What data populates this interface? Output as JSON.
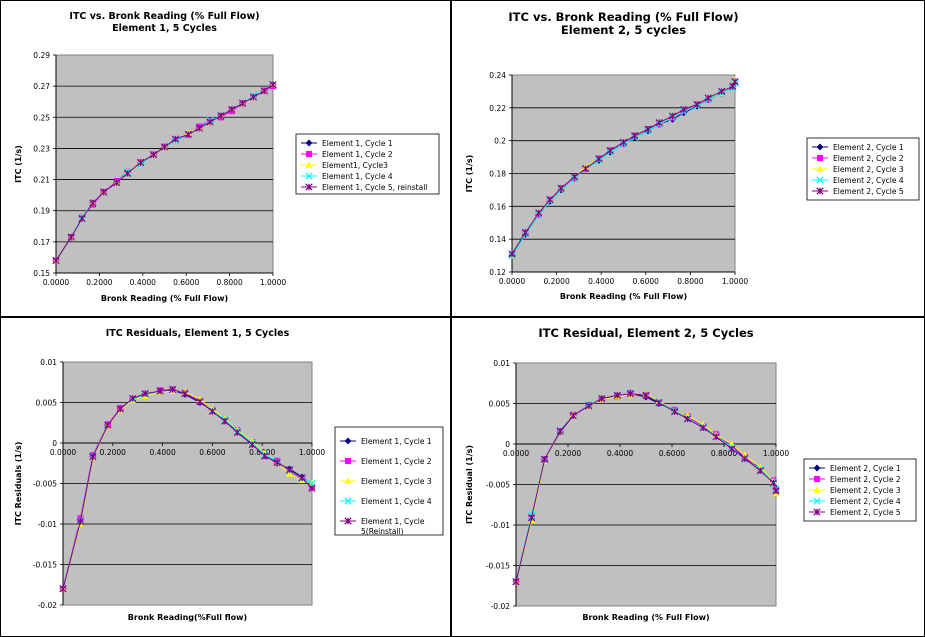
{
  "chart_data": [
    {
      "type": "line",
      "title": "ITC vs. Bronk Reading (% Full Flow)",
      "subtitle": "Element 1, 5 Cycles",
      "xlabel": "Bronk Reading (% Full Flow)",
      "ylabel": "ITC (1/s)",
      "xlim": [
        0,
        1
      ],
      "ylim": [
        0.15,
        0.29
      ],
      "xticks": [
        "0.0000",
        "0.2000",
        "0.4000",
        "0.6000",
        "0.8000",
        "1.0000"
      ],
      "yticks": [
        "0.15",
        "0.17",
        "0.19",
        "0.21",
        "0.23",
        "0.25",
        "0.27",
        "0.29"
      ],
      "grid": true,
      "legend_position": "right",
      "x": [
        0.0,
        0.07,
        0.12,
        0.17,
        0.22,
        0.28,
        0.33,
        0.39,
        0.45,
        0.5,
        0.55,
        0.61,
        0.66,
        0.71,
        0.76,
        0.81,
        0.86,
        0.91,
        0.96,
        1.0
      ],
      "series": [
        {
          "name": "Element 1, Cycle 1",
          "y": [
            0.158,
            0.173,
            0.186,
            0.195,
            0.202,
            0.208,
            0.215,
            0.221,
            0.226,
            0.231,
            0.235,
            0.239,
            0.243,
            0.247,
            0.251,
            0.255,
            0.259,
            0.263,
            0.267,
            0.271
          ]
        },
        {
          "name": "Element 1, Cycle 2",
          "y": [
            0.158,
            0.173,
            0.186,
            0.194,
            0.202,
            0.209,
            0.215,
            0.221,
            0.226,
            0.231,
            0.235,
            0.239,
            0.244,
            0.248,
            0.25,
            0.254,
            0.259,
            0.263,
            0.267,
            0.27
          ]
        },
        {
          "name": "Element1, Cycle3",
          "y": [
            0.158,
            0.173,
            0.186,
            0.195,
            0.202,
            0.208,
            0.215,
            0.221,
            0.226,
            0.231,
            0.235,
            0.24,
            0.243,
            0.247,
            0.251,
            0.255,
            0.259,
            0.263,
            0.267,
            0.271
          ]
        },
        {
          "name": "Element 1, Cycle 4",
          "y": [
            0.158,
            0.173,
            0.186,
            0.195,
            0.202,
            0.208,
            0.215,
            0.22,
            0.226,
            0.231,
            0.235,
            0.239,
            0.243,
            0.248,
            0.251,
            0.255,
            0.259,
            0.264,
            0.267,
            0.271
          ]
        },
        {
          "name": "Element 1, Cycle 5, reinstall",
          "y": [
            0.158,
            0.173,
            0.185,
            0.195,
            0.202,
            0.208,
            0.214,
            0.221,
            0.226,
            0.231,
            0.236,
            0.239,
            0.243,
            0.247,
            0.251,
            0.255,
            0.259,
            0.263,
            0.267,
            0.271
          ]
        }
      ]
    },
    {
      "type": "line",
      "title": "ITC vs. Bronk Reading (% Full Flow)",
      "subtitle": "Element 2, 5 cycles",
      "xlabel": "Bronk Reading (% Full Flow)",
      "ylabel": "ITC (1/s)",
      "xlim": [
        0,
        1
      ],
      "ylim": [
        0.12,
        0.24
      ],
      "xticks": [
        "0.0000",
        "0.2000",
        "0.4000",
        "0.6000",
        "0.8000",
        "1.0000"
      ],
      "yticks": [
        "0.12",
        "0.14",
        "0.16",
        "0.18",
        "0.2",
        "0.22",
        "0.24"
      ],
      "grid": true,
      "legend_position": "right",
      "x": [
        0.0,
        0.06,
        0.12,
        0.17,
        0.22,
        0.28,
        0.33,
        0.39,
        0.44,
        0.5,
        0.55,
        0.61,
        0.66,
        0.72,
        0.77,
        0.83,
        0.88,
        0.94,
        0.99,
        1.0
      ],
      "series": [
        {
          "name": "Element 2, Cycle 1",
          "y": [
            0.13,
            0.143,
            0.155,
            0.163,
            0.17,
            0.177,
            0.183,
            0.188,
            0.193,
            0.198,
            0.202,
            0.206,
            0.21,
            0.213,
            0.217,
            0.221,
            0.225,
            0.229,
            0.233,
            0.236
          ]
        },
        {
          "name": "Element 2, Cycle 2",
          "y": [
            0.13,
            0.144,
            0.155,
            0.164,
            0.171,
            0.177,
            0.183,
            0.189,
            0.194,
            0.198,
            0.203,
            0.207,
            0.21,
            0.214,
            0.218,
            0.222,
            0.225,
            0.229,
            0.233,
            0.236
          ]
        },
        {
          "name": "Element 2, Cycle 3",
          "y": [
            0.13,
            0.144,
            0.156,
            0.164,
            0.171,
            0.178,
            0.184,
            0.189,
            0.194,
            0.199,
            0.203,
            0.207,
            0.211,
            0.215,
            0.219,
            0.222,
            0.226,
            0.229,
            0.233,
            0.237
          ]
        },
        {
          "name": "Element 2, Cycle 4",
          "y": [
            0.13,
            0.143,
            0.155,
            0.163,
            0.17,
            0.177,
            0.183,
            0.188,
            0.193,
            0.198,
            0.202,
            0.206,
            0.21,
            0.214,
            0.218,
            0.221,
            0.225,
            0.229,
            0.232,
            0.235
          ]
        },
        {
          "name": "Element 2, Cycle 5",
          "y": [
            0.131,
            0.144,
            0.156,
            0.164,
            0.171,
            0.178,
            0.183,
            0.189,
            0.194,
            0.199,
            0.203,
            0.207,
            0.211,
            0.215,
            0.219,
            0.222,
            0.226,
            0.23,
            0.233,
            0.236
          ]
        }
      ]
    },
    {
      "type": "line",
      "title": "ITC Residuals, Element 1, 5 Cycles",
      "xlabel": "Bronk Reading(%Full flow)",
      "ylabel": "ITC Residuals (1/s)",
      "xlim": [
        0,
        1
      ],
      "ylim": [
        -0.02,
        0.01
      ],
      "xticks": [
        "0.0000",
        "0.2000",
        "0.4000",
        "0.6000",
        "0.8000",
        "1.0000"
      ],
      "yticks": [
        "-0.02",
        "-0.015",
        "-0.01",
        "-0.005",
        "0",
        "0.005",
        "0.01"
      ],
      "grid": true,
      "legend_position": "right",
      "x": [
        0.0,
        0.07,
        0.12,
        0.18,
        0.23,
        0.28,
        0.33,
        0.39,
        0.44,
        0.49,
        0.55,
        0.6,
        0.65,
        0.7,
        0.76,
        0.81,
        0.86,
        0.91,
        0.96,
        1.0
      ],
      "series": [
        {
          "name": "Element 1, Cycle 1",
          "y": [
            -0.018,
            -0.0098,
            -0.0017,
            0.0022,
            0.0042,
            0.0054,
            0.006,
            0.0064,
            0.0065,
            0.006,
            0.005,
            0.004,
            0.0028,
            0.0014,
            -0.0001,
            -0.0015,
            -0.0025,
            -0.0032,
            -0.0042,
            -0.0052
          ]
        },
        {
          "name": "Element 1, Cycle 2",
          "y": [
            -0.018,
            -0.0093,
            -0.0015,
            0.0023,
            0.0043,
            0.0054,
            0.0059,
            0.0065,
            0.0066,
            0.0062,
            0.0052,
            0.0041,
            0.0027,
            0.0016,
            0.0001,
            -0.0016,
            -0.0022,
            -0.0035,
            -0.0045,
            -0.0054
          ]
        },
        {
          "name": "Element 1, Cycle 3",
          "y": [
            -0.018,
            -0.01,
            -0.0018,
            0.0021,
            0.0041,
            0.0053,
            0.0058,
            0.0063,
            0.0064,
            0.0063,
            0.0054,
            0.0042,
            0.003,
            0.0016,
            0.0002,
            -0.0013,
            -0.0024,
            -0.0038,
            -0.0046,
            -0.005
          ]
        },
        {
          "name": "Element 1, Cycle 4",
          "y": [
            -0.018,
            -0.0096,
            -0.0016,
            0.0022,
            0.0042,
            0.0054,
            0.006,
            0.0064,
            0.0066,
            0.0061,
            0.0051,
            0.004,
            0.0029,
            0.0015,
            0.0,
            -0.0014,
            -0.0023,
            -0.0034,
            -0.0044,
            -0.005
          ]
        },
        {
          "name": "Element 1, Cycle 5(Reinstall)",
          "y": [
            -0.018,
            -0.0097,
            -0.0017,
            0.0022,
            0.0042,
            0.0055,
            0.0061,
            0.0064,
            0.0066,
            0.0061,
            0.0051,
            0.0039,
            0.0027,
            0.0013,
            -0.0002,
            -0.0016,
            -0.0024,
            -0.0033,
            -0.0043,
            -0.0056
          ]
        }
      ]
    },
    {
      "type": "line",
      "title": "ITC Residual, Element 2, 5 Cycles",
      "xlabel": "Bronk Reading (% Full Flow)",
      "ylabel": "ITC Residual (1/s)",
      "xlim": [
        0,
        1
      ],
      "ylim": [
        -0.02,
        0.01
      ],
      "xticks": [
        "0.0000",
        "0.2000",
        "0.4000",
        "0.6000",
        "0.8000",
        "1.0000"
      ],
      "yticks": [
        "-0.02",
        "-0.015",
        "-0.01",
        "-0.005",
        "0",
        "0.005",
        "0.01"
      ],
      "grid": true,
      "legend_position": "right",
      "x": [
        0.0,
        0.06,
        0.11,
        0.17,
        0.22,
        0.28,
        0.33,
        0.39,
        0.44,
        0.5,
        0.55,
        0.61,
        0.66,
        0.72,
        0.77,
        0.83,
        0.88,
        0.94,
        0.99,
        1.0
      ],
      "series": [
        {
          "name": "Element 2, Cycle 1",
          "y": [
            -0.017,
            -0.009,
            -0.002,
            0.0015,
            0.0035,
            0.0048,
            0.0056,
            0.006,
            0.0062,
            0.0058,
            0.005,
            0.0042,
            0.0032,
            0.0022,
            0.001,
            -0.0003,
            -0.0018,
            -0.003,
            -0.0046,
            -0.0055
          ]
        },
        {
          "name": "Element 2, Cycle 2",
          "y": [
            -0.017,
            -0.0092,
            -0.0019,
            0.0016,
            0.0036,
            0.0048,
            0.0055,
            0.0059,
            0.0063,
            0.006,
            0.0052,
            0.0042,
            0.0034,
            0.0022,
            0.0012,
            -0.0002,
            -0.0016,
            -0.0032,
            -0.0045,
            -0.0057
          ]
        },
        {
          "name": "Element 2, Cycle 3",
          "y": [
            -0.017,
            -0.0094,
            -0.0021,
            0.0016,
            0.0036,
            0.0047,
            0.0055,
            0.0059,
            0.0061,
            0.0061,
            0.0053,
            0.0041,
            0.0035,
            0.0024,
            0.0011,
            0.0,
            -0.0014,
            -0.0029,
            -0.0046,
            -0.0061
          ]
        },
        {
          "name": "Element 2, Cycle 4",
          "y": [
            -0.017,
            -0.0088,
            -0.002,
            0.0017,
            0.0035,
            0.0048,
            0.0056,
            0.006,
            0.0063,
            0.006,
            0.0052,
            0.0041,
            0.0032,
            0.0021,
            0.001,
            -0.0004,
            -0.0019,
            -0.0031,
            -0.0047,
            -0.0055
          ]
        },
        {
          "name": "Element 2, Cycle 5",
          "y": [
            -0.017,
            -0.0091,
            -0.0019,
            0.0016,
            0.0035,
            0.0047,
            0.0056,
            0.006,
            0.0062,
            0.006,
            0.0051,
            0.004,
            0.0031,
            0.002,
            0.0009,
            -0.0006,
            -0.0018,
            -0.0033,
            -0.0048,
            -0.0058
          ]
        }
      ]
    }
  ],
  "style": {
    "plot_background": "#c0c0c0",
    "gridline_color": "#000000",
    "series_colors": [
      "#000080",
      "#ff00ff",
      "#ffff00",
      "#00ffff",
      "#800080"
    ],
    "markers": [
      "diamond",
      "square",
      "triangle",
      "x",
      "star"
    ]
  }
}
